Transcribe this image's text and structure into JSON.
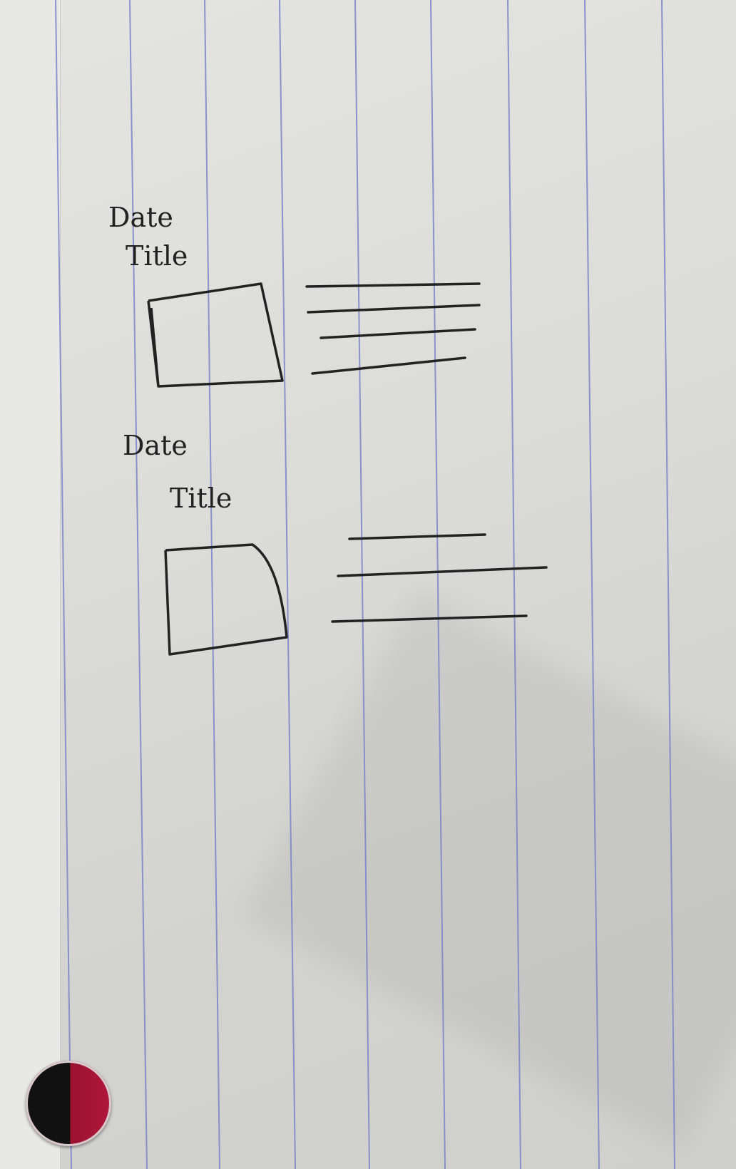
{
  "sketch": {
    "entries": [
      {
        "date_label": "Date",
        "title_label": "Title"
      },
      {
        "date_label": "Date",
        "title_label": "Title"
      }
    ]
  },
  "colors": {
    "paper": "#dcdcd9",
    "rule_line": "#7d84c8",
    "ink": "#222222",
    "magnet_black": "#111111",
    "magnet_red": "#b0173a"
  }
}
